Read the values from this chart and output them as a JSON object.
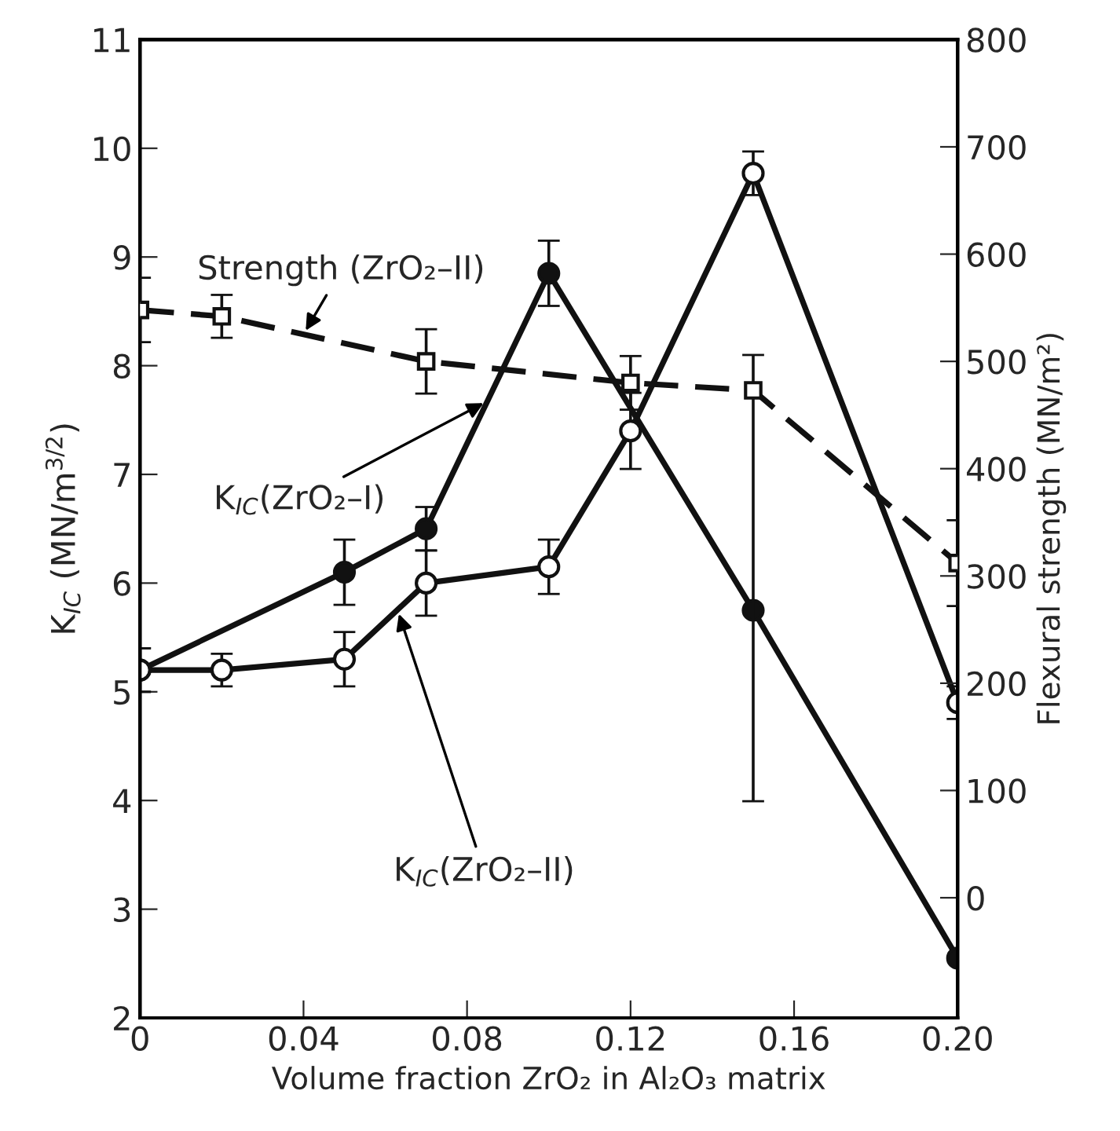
{
  "chart_data": {
    "type": "line",
    "xlabel": "Volume fraction ZrO₂ in Al₂O₃ matrix",
    "ylabel": "K$_{IC}$ (MN/m$^{3/2}$)",
    "y2label": "Flexural strength (MN/m²)",
    "xlim": [
      0,
      0.2
    ],
    "xticks": [
      0,
      0.04,
      0.08,
      0.12,
      0.16,
      {
        "value": 0.2,
        "label": "0.20"
      }
    ],
    "ylim": [
      2,
      11
    ],
    "yticks": [
      2,
      3,
      4,
      5,
      6,
      7,
      8,
      9,
      10,
      11
    ],
    "y2lim": [
      -112,
      800
    ],
    "y2ticks": [
      0,
      100,
      200,
      300,
      400,
      500,
      600,
      700,
      800
    ],
    "grid": false,
    "legend": false,
    "series": [
      {
        "name": "K$_{IC}$(ZrO₂–I)",
        "color": "#111111",
        "marker": "circle",
        "line_style": "solid",
        "x": [
          0,
          0.05,
          0.07,
          0.1,
          0.15,
          0.2
        ],
        "values": [
          5.2,
          6.1,
          6.5,
          8.85,
          5.75,
          2.55
        ],
        "errors": [
          0.2,
          0.3,
          0.2,
          0.3,
          null,
          null
        ]
      },
      {
        "name": "K$_{IC}$(ZrO₂–II)",
        "color": "#111111",
        "marker": "circle",
        "line_style": "solid",
        "x": [
          0,
          0.02,
          0.05,
          0.07,
          0.1,
          0.12,
          0.15,
          0.2
        ],
        "values": [
          5.2,
          5.2,
          5.3,
          6.0,
          6.15,
          7.4,
          9.77,
          4.9
        ],
        "errors": [
          0.2,
          0.15,
          0.25,
          0.3,
          0.25,
          0.35,
          0.2,
          0.15
        ]
      },
      {
        "name": "Strength (ZrO₂–II)",
        "color": "#111111",
        "marker": "square",
        "line_style": "dashed",
        "axis": "y2",
        "x": [
          0,
          0.02,
          0.07,
          0.12,
          0.15,
          0.2
        ],
        "values": [
          548,
          542,
          500,
          480,
          473,
          312
        ],
        "errors": [
          30,
          20,
          30,
          25,
          [
            90,
            506
          ],
          40
        ]
      }
    ]
  }
}
